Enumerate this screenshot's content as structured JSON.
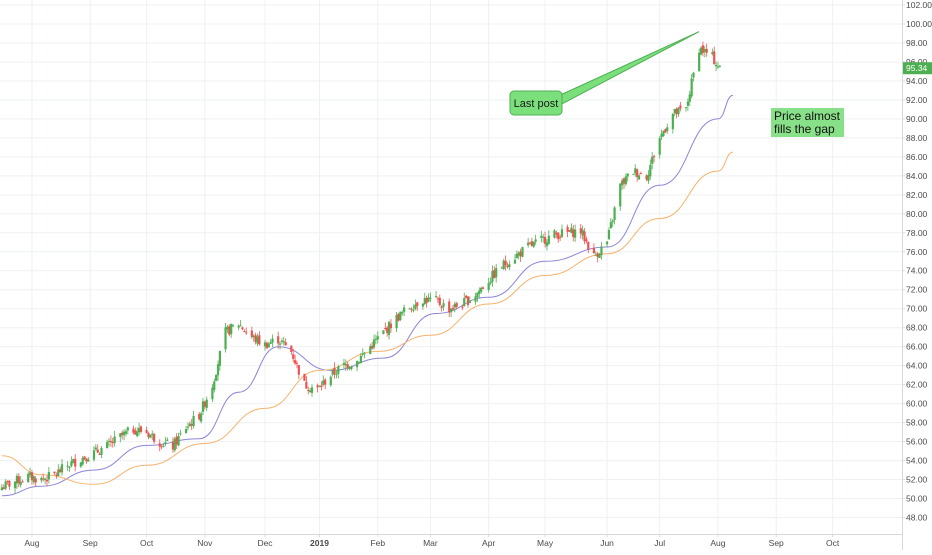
{
  "chart_data": {
    "type": "candlestick",
    "price_axis": {
      "min": 47.0,
      "max": 102.0,
      "ticks": [
        48,
        50,
        52,
        54,
        56,
        58,
        60,
        62,
        64,
        66,
        68,
        70,
        72,
        74,
        76,
        78,
        80,
        82,
        84,
        86,
        88,
        90,
        92,
        94,
        96,
        98,
        100,
        102
      ],
      "tick_labels": [
        "48.00",
        "50.00",
        "52.00",
        "54.00",
        "56.00",
        "58.00",
        "60.00",
        "62.00",
        "64.00",
        "66.00",
        "68.00",
        "70.00",
        "72.00",
        "74.00",
        "76.00",
        "78.00",
        "80.00",
        "82.00",
        "84.00",
        "86.00",
        "88.00",
        "90.00",
        "92.00",
        "94.00",
        "96.00",
        "98.00",
        "100.00",
        "102.00"
      ]
    },
    "time_axis": {
      "start": "2018-07-15",
      "end": "2019-10-31",
      "labels": [
        {
          "date": "2018-08-01",
          "text": "Aug",
          "bold": false
        },
        {
          "date": "2018-09-01",
          "text": "Sep",
          "bold": false
        },
        {
          "date": "2018-10-01",
          "text": "Oct",
          "bold": false
        },
        {
          "date": "2018-11-01",
          "text": "Nov",
          "bold": false
        },
        {
          "date": "2018-12-03",
          "text": "Dec",
          "bold": false
        },
        {
          "date": "2019-01-01",
          "text": "2019",
          "bold": true
        },
        {
          "date": "2019-02-01",
          "text": "Feb",
          "bold": false
        },
        {
          "date": "2019-03-01",
          "text": "Mar",
          "bold": false
        },
        {
          "date": "2019-04-01",
          "text": "Apr",
          "bold": false
        },
        {
          "date": "2019-05-01",
          "text": "May",
          "bold": false
        },
        {
          "date": "2019-06-03",
          "text": "Jun",
          "bold": false
        },
        {
          "date": "2019-07-01",
          "text": "Jul",
          "bold": false
        },
        {
          "date": "2019-08-01",
          "text": "Aug",
          "bold": false
        },
        {
          "date": "2019-09-01",
          "text": "Sep",
          "bold": false
        },
        {
          "date": "2019-10-01",
          "text": "Oct",
          "bold": false
        }
      ]
    },
    "price_path": [
      [
        "2018-07-16",
        51.2
      ],
      [
        "2018-07-23",
        51.8
      ],
      [
        "2018-07-30",
        52.3
      ],
      [
        "2018-08-06",
        52.0
      ],
      [
        "2018-08-13",
        52.5
      ],
      [
        "2018-08-20",
        53.5
      ],
      [
        "2018-08-27",
        54.2
      ],
      [
        "2018-09-03",
        54.8
      ],
      [
        "2018-09-10",
        55.5
      ],
      [
        "2018-09-17",
        56.5
      ],
      [
        "2018-09-24",
        57.3
      ],
      [
        "2018-10-01",
        57.0
      ],
      [
        "2018-10-08",
        56.0
      ],
      [
        "2018-10-15",
        55.5
      ],
      [
        "2018-10-22",
        57.5
      ],
      [
        "2018-10-29",
        58.8
      ],
      [
        "2018-11-05",
        62.0
      ],
      [
        "2018-11-12",
        67.5
      ],
      [
        "2018-11-19",
        68.4
      ],
      [
        "2018-11-26",
        67.0
      ],
      [
        "2018-12-03",
        66.2
      ],
      [
        "2018-12-10",
        66.8
      ],
      [
        "2018-12-17",
        65.5
      ],
      [
        "2018-12-24",
        62.0
      ],
      [
        "2018-12-31",
        61.5
      ],
      [
        "2019-01-07",
        63.0
      ],
      [
        "2019-01-14",
        64.0
      ],
      [
        "2019-01-21",
        64.5
      ],
      [
        "2019-01-28",
        66.0
      ],
      [
        "2019-02-04",
        67.5
      ],
      [
        "2019-02-11",
        69.0
      ],
      [
        "2019-02-18",
        70.2
      ],
      [
        "2019-02-25",
        71.0
      ],
      [
        "2019-03-04",
        70.8
      ],
      [
        "2019-03-11",
        70.0
      ],
      [
        "2019-03-18",
        70.5
      ],
      [
        "2019-03-25",
        71.5
      ],
      [
        "2019-04-01",
        73.0
      ],
      [
        "2019-04-08",
        74.5
      ],
      [
        "2019-04-15",
        75.5
      ],
      [
        "2019-04-22",
        76.5
      ],
      [
        "2019-04-29",
        77.2
      ],
      [
        "2019-05-06",
        77.8
      ],
      [
        "2019-05-13",
        78.0
      ],
      [
        "2019-05-20",
        78.2
      ],
      [
        "2019-05-27",
        75.5
      ],
      [
        "2019-06-03",
        77.0
      ],
      [
        "2019-06-10",
        83.0
      ],
      [
        "2019-06-17",
        84.5
      ],
      [
        "2019-06-24",
        84.0
      ],
      [
        "2019-07-01",
        88.0
      ],
      [
        "2019-07-08",
        90.5
      ],
      [
        "2019-07-15",
        91.0
      ],
      [
        "2019-07-22",
        97.5
      ],
      [
        "2019-07-29",
        96.5
      ],
      [
        "2019-08-02",
        95.3
      ]
    ],
    "overlays": [
      {
        "name": "",
        "color": "#8c86d8",
        "points": [
          [
            "2018-07-16",
            50.3
          ],
          [
            "2018-08-06",
            51.3
          ],
          [
            "2018-09-03",
            53.0
          ],
          [
            "2018-10-01",
            55.6
          ],
          [
            "2018-10-29",
            56.3
          ],
          [
            "2018-11-19",
            61.2
          ],
          [
            "2018-12-10",
            66.0
          ],
          [
            "2019-01-07",
            63.5
          ],
          [
            "2019-02-04",
            64.8
          ],
          [
            "2019-03-04",
            69.5
          ],
          [
            "2019-04-01",
            71.2
          ],
          [
            "2019-05-01",
            75.0
          ],
          [
            "2019-06-03",
            76.5
          ],
          [
            "2019-07-01",
            83.0
          ],
          [
            "2019-08-01",
            90.0
          ],
          [
            "2019-08-09",
            92.5
          ]
        ]
      },
      {
        "name": "",
        "color": "#f6b26b",
        "points": [
          [
            "2018-07-16",
            54.5
          ],
          [
            "2018-08-06",
            52.5
          ],
          [
            "2018-09-03",
            51.5
          ],
          [
            "2018-10-01",
            53.5
          ],
          [
            "2018-11-01",
            55.8
          ],
          [
            "2018-12-03",
            59.5
          ],
          [
            "2019-01-01",
            63.5
          ],
          [
            "2019-02-01",
            65.5
          ],
          [
            "2019-03-01",
            67.2
          ],
          [
            "2019-04-01",
            70.5
          ],
          [
            "2019-05-01",
            73.5
          ],
          [
            "2019-06-03",
            75.8
          ],
          [
            "2019-07-01",
            79.5
          ],
          [
            "2019-08-01",
            84.5
          ],
          [
            "2019-08-09",
            86.5
          ]
        ]
      }
    ],
    "callout": {
      "text": "Last post",
      "target_date": "2019-07-22",
      "target_price": 99.2
    },
    "note": {
      "lines": [
        "Price almost",
        "fills the gap"
      ]
    },
    "last_price": {
      "text": "95.34",
      "value": 95.34,
      "color": "#4caf50"
    },
    "colors": {
      "up": "#4caf50",
      "down": "#ef5350",
      "grid": "#eef0f3",
      "axis_text": "#4a4a4a",
      "callout_fill": "#7be07b",
      "callout_border": "#4caf50",
      "note_fill": "#88e088"
    }
  }
}
